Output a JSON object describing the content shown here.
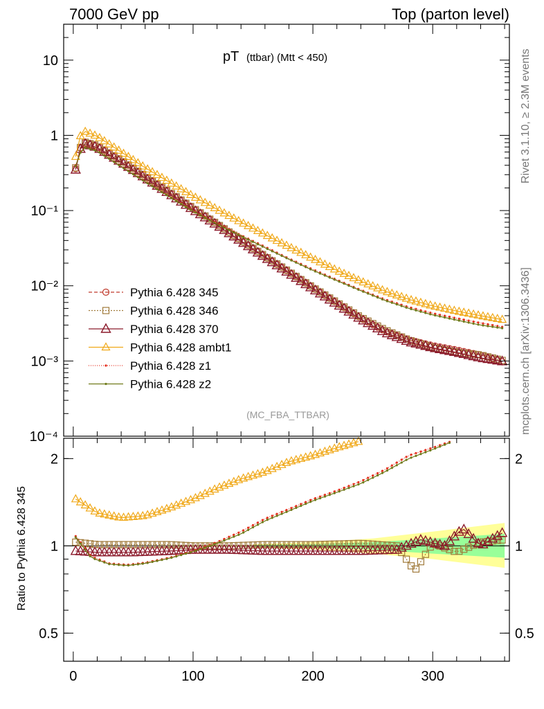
{
  "header": {
    "left": "7000 GeV pp",
    "right": "Top (parton level)"
  },
  "side_labels": {
    "rivet": "Rivet 3.1.10, ≥ 2.3M events",
    "mcplots": "mcplots.cern.ch [arXiv:1306.3436]"
  },
  "chart_data": [
    {
      "type": "line",
      "panel": "main",
      "title_main": "pT",
      "title_sub": "(ttbar) (Mtt < 450)",
      "analysis_label": "(MC_FBA_TTBAR)",
      "xlabel": "",
      "ylabel": "",
      "yscale": "log",
      "xlim": [
        -8,
        364
      ],
      "ylim": [
        0.0001,
        30
      ],
      "y_ticks": [
        {
          "value": 10,
          "label": "10"
        },
        {
          "value": 1,
          "label": "1"
        },
        {
          "value": 0.1,
          "label": "10⁻¹"
        },
        {
          "value": 0.01,
          "label": "10⁻²"
        },
        {
          "value": 0.001,
          "label": "10⁻³"
        },
        {
          "value": 0.0001,
          "label": "10⁻⁴"
        }
      ],
      "x_ticks": [
        0,
        100,
        200,
        300
      ],
      "legend_position": "bottom-left",
      "series": [
        {
          "name": "Pythia 6.428 345",
          "color": "#c0392b",
          "marker": "circle",
          "dash": "5,3",
          "points": [
            [
              2,
              0.36
            ],
            [
              6,
              0.68
            ],
            [
              10,
              0.8
            ],
            [
              20,
              0.72
            ],
            [
              40,
              0.46
            ],
            [
              60,
              0.285
            ],
            [
              80,
              0.175
            ],
            [
              100,
              0.107
            ],
            [
              120,
              0.066
            ],
            [
              140,
              0.04
            ],
            [
              160,
              0.0245
            ],
            [
              180,
              0.0152
            ],
            [
              200,
              0.0094
            ],
            [
              220,
              0.0059
            ],
            [
              240,
              0.0037
            ],
            [
              260,
              0.0025
            ],
            [
              280,
              0.0019
            ],
            [
              300,
              0.0016
            ],
            [
              320,
              0.0014
            ],
            [
              340,
              0.0012
            ],
            [
              360,
              0.00095
            ]
          ]
        },
        {
          "name": "Pythia 6.428 346",
          "color": "#a07a3a",
          "marker": "square",
          "dash": "2,2",
          "points": [
            [
              2,
              0.37
            ],
            [
              6,
              0.69
            ],
            [
              10,
              0.81
            ],
            [
              20,
              0.73
            ],
            [
              40,
              0.465
            ],
            [
              60,
              0.288
            ],
            [
              80,
              0.177
            ],
            [
              100,
              0.108
            ],
            [
              120,
              0.0665
            ],
            [
              140,
              0.0405
            ],
            [
              160,
              0.0248
            ],
            [
              180,
              0.0154
            ],
            [
              200,
              0.0095
            ],
            [
              220,
              0.006
            ],
            [
              240,
              0.0038
            ],
            [
              260,
              0.0026
            ],
            [
              280,
              0.0019
            ],
            [
              300,
              0.0015
            ],
            [
              320,
              0.0013
            ],
            [
              340,
              0.0012
            ],
            [
              360,
              0.001
            ]
          ]
        },
        {
          "name": "Pythia 6.428 370",
          "color": "#8b1a2b",
          "marker": "triangle-big",
          "dash": "",
          "points": [
            [
              2,
              0.35
            ],
            [
              6,
              0.66
            ],
            [
              10,
              0.77
            ],
            [
              20,
              0.69
            ],
            [
              40,
              0.44
            ],
            [
              60,
              0.272
            ],
            [
              80,
              0.168
            ],
            [
              100,
              0.103
            ],
            [
              120,
              0.064
            ],
            [
              140,
              0.039
            ],
            [
              160,
              0.0238
            ],
            [
              180,
              0.0147
            ],
            [
              200,
              0.0091
            ],
            [
              220,
              0.0057
            ],
            [
              240,
              0.0036
            ],
            [
              260,
              0.0024
            ],
            [
              280,
              0.0018
            ],
            [
              300,
              0.0015
            ],
            [
              320,
              0.0013
            ],
            [
              340,
              0.0011
            ],
            [
              360,
              0.00098
            ]
          ]
        },
        {
          "name": "Pythia 6.428 ambt1",
          "color": "#f0a818",
          "marker": "triangle",
          "dash": "",
          "points": [
            [
              2,
              0.52
            ],
            [
              6,
              0.98
            ],
            [
              10,
              1.12
            ],
            [
              20,
              0.97
            ],
            [
              40,
              0.6
            ],
            [
              60,
              0.37
            ],
            [
              80,
              0.24
            ],
            [
              100,
              0.155
            ],
            [
              120,
              0.104
            ],
            [
              140,
              0.07
            ],
            [
              160,
              0.048
            ],
            [
              180,
              0.033
            ],
            [
              200,
              0.023
            ],
            [
              220,
              0.016
            ],
            [
              240,
              0.0115
            ],
            [
              260,
              0.0085
            ],
            [
              280,
              0.0066
            ],
            [
              300,
              0.0054
            ],
            [
              320,
              0.0046
            ],
            [
              340,
              0.004
            ],
            [
              360,
              0.0035
            ]
          ]
        },
        {
          "name": "Pythia 6.428 z1",
          "color": "#e53020",
          "marker": "dot",
          "dash": "1,2",
          "points": [
            [
              2,
              0.4
            ],
            [
              6,
              0.6
            ],
            [
              10,
              0.7
            ],
            [
              20,
              0.63
            ],
            [
              40,
              0.39
            ],
            [
              60,
              0.245
            ],
            [
              80,
              0.155
            ],
            [
              100,
              0.1
            ],
            [
              120,
              0.068
            ],
            [
              140,
              0.047
            ],
            [
              160,
              0.033
            ],
            [
              180,
              0.023
            ],
            [
              200,
              0.0165
            ],
            [
              220,
              0.012
            ],
            [
              240,
              0.0088
            ],
            [
              260,
              0.0066
            ],
            [
              280,
              0.0052
            ],
            [
              300,
              0.0043
            ],
            [
              320,
              0.0037
            ],
            [
              340,
              0.0032
            ],
            [
              360,
              0.0028
            ]
          ]
        },
        {
          "name": "Pythia 6.428 z2",
          "color": "#6f7a1a",
          "marker": "dot",
          "dash": "",
          "points": [
            [
              2,
              0.39
            ],
            [
              6,
              0.59
            ],
            [
              10,
              0.69
            ],
            [
              20,
              0.62
            ],
            [
              40,
              0.385
            ],
            [
              60,
              0.242
            ],
            [
              80,
              0.153
            ],
            [
              100,
              0.098
            ],
            [
              120,
              0.066
            ],
            [
              140,
              0.046
            ],
            [
              160,
              0.032
            ],
            [
              180,
              0.0225
            ],
            [
              200,
              0.016
            ],
            [
              220,
              0.0117
            ],
            [
              240,
              0.0086
            ],
            [
              260,
              0.0064
            ],
            [
              280,
              0.005
            ],
            [
              300,
              0.0041
            ],
            [
              320,
              0.0035
            ],
            [
              340,
              0.003
            ],
            [
              360,
              0.0027
            ]
          ]
        }
      ]
    },
    {
      "type": "line",
      "panel": "ratio",
      "xlabel": "",
      "ylabel": "Ratio to Pythia 6.428 345",
      "yscale": "log",
      "xlim": [
        -8,
        364
      ],
      "ylim": [
        0.4,
        2.35
      ],
      "y_ticks": [
        {
          "value": 2,
          "label": "2"
        },
        {
          "value": 1,
          "label": "1"
        },
        {
          "value": 0.5,
          "label": "0.5"
        }
      ],
      "x_ticks": [
        0,
        100,
        200,
        300
      ],
      "band": {
        "yellow_upper": [
          [
            150,
            1.015
          ],
          [
            200,
            1.03
          ],
          [
            250,
            1.06
          ],
          [
            300,
            1.12
          ],
          [
            360,
            1.2
          ]
        ],
        "yellow_lower": [
          [
            150,
            0.985
          ],
          [
            200,
            0.97
          ],
          [
            250,
            0.94
          ],
          [
            300,
            0.9
          ],
          [
            360,
            0.84
          ]
        ],
        "green_upper": [
          [
            150,
            1.008
          ],
          [
            200,
            1.015
          ],
          [
            250,
            1.03
          ],
          [
            300,
            1.06
          ],
          [
            360,
            1.1
          ]
        ],
        "green_lower": [
          [
            150,
            0.992
          ],
          [
            200,
            0.985
          ],
          [
            250,
            0.97
          ],
          [
            300,
            0.94
          ],
          [
            360,
            0.91
          ]
        ]
      },
      "series": [
        {
          "name": "Pythia 6.428 346",
          "color": "#a07a3a",
          "marker": "square",
          "dash": "2,2",
          "points": [
            [
              2,
              1.03
            ],
            [
              20,
              1.01
            ],
            [
              50,
              1.01
            ],
            [
              80,
              1.01
            ],
            [
              100,
              1.0
            ],
            [
              130,
              1.0
            ],
            [
              160,
              1.01
            ],
            [
              200,
              1.01
            ],
            [
              240,
              1.02
            ],
            [
              270,
              1.0
            ],
            [
              285,
              0.82
            ],
            [
              300,
              1.02
            ],
            [
              320,
              0.95
            ],
            [
              340,
              1.03
            ],
            [
              360,
              1.05
            ]
          ]
        },
        {
          "name": "Pythia 6.428 370",
          "color": "#8b1a2b",
          "marker": "triangle-big",
          "dash": "",
          "points": [
            [
              2,
              0.96
            ],
            [
              20,
              0.95
            ],
            [
              50,
              0.95
            ],
            [
              80,
              0.96
            ],
            [
              100,
              0.97
            ],
            [
              130,
              0.97
            ],
            [
              160,
              0.96
            ],
            [
              200,
              0.96
            ],
            [
              240,
              0.96
            ],
            [
              270,
              0.97
            ],
            [
              290,
              1.05
            ],
            [
              310,
              1.0
            ],
            [
              325,
              1.15
            ],
            [
              340,
              1.0
            ],
            [
              360,
              1.12
            ]
          ]
        },
        {
          "name": "Pythia 6.428 ambt1",
          "color": "#f0a818",
          "marker": "triangle",
          "dash": "",
          "points": [
            [
              2,
              1.45
            ],
            [
              20,
              1.3
            ],
            [
              40,
              1.25
            ],
            [
              60,
              1.27
            ],
            [
              80,
              1.35
            ],
            [
              100,
              1.45
            ],
            [
              120,
              1.58
            ],
            [
              140,
              1.7
            ],
            [
              160,
              1.8
            ],
            [
              180,
              1.95
            ],
            [
              200,
              2.05
            ],
            [
              220,
              2.18
            ],
            [
              240,
              2.3
            ],
            [
              250,
              2.35
            ]
          ]
        },
        {
          "name": "Pythia 6.428 z1",
          "color": "#e53020",
          "marker": "dot",
          "dash": "1,2",
          "points": [
            [
              2,
              1.08
            ],
            [
              15,
              0.92
            ],
            [
              30,
              0.87
            ],
            [
              45,
              0.86
            ],
            [
              60,
              0.875
            ],
            [
              80,
              0.91
            ],
            [
              100,
              0.96
            ],
            [
              120,
              1.03
            ],
            [
              140,
              1.12
            ],
            [
              160,
              1.24
            ],
            [
              180,
              1.34
            ],
            [
              200,
              1.45
            ],
            [
              220,
              1.55
            ],
            [
              240,
              1.67
            ],
            [
              260,
              1.83
            ],
            [
              280,
              2.05
            ],
            [
              300,
              2.18
            ],
            [
              320,
              2.33
            ]
          ]
        },
        {
          "name": "Pythia 6.428 z2",
          "color": "#6f7a1a",
          "marker": "dot",
          "dash": "",
          "points": [
            [
              2,
              1.07
            ],
            [
              15,
              0.91
            ],
            [
              30,
              0.865
            ],
            [
              45,
              0.855
            ],
            [
              60,
              0.87
            ],
            [
              80,
              0.905
            ],
            [
              100,
              0.955
            ],
            [
              120,
              1.02
            ],
            [
              140,
              1.1
            ],
            [
              160,
              1.22
            ],
            [
              180,
              1.32
            ],
            [
              200,
              1.43
            ],
            [
              220,
              1.53
            ],
            [
              240,
              1.64
            ],
            [
              260,
              1.8
            ],
            [
              280,
              2.0
            ],
            [
              300,
              2.15
            ],
            [
              320,
              2.32
            ]
          ]
        }
      ]
    }
  ]
}
